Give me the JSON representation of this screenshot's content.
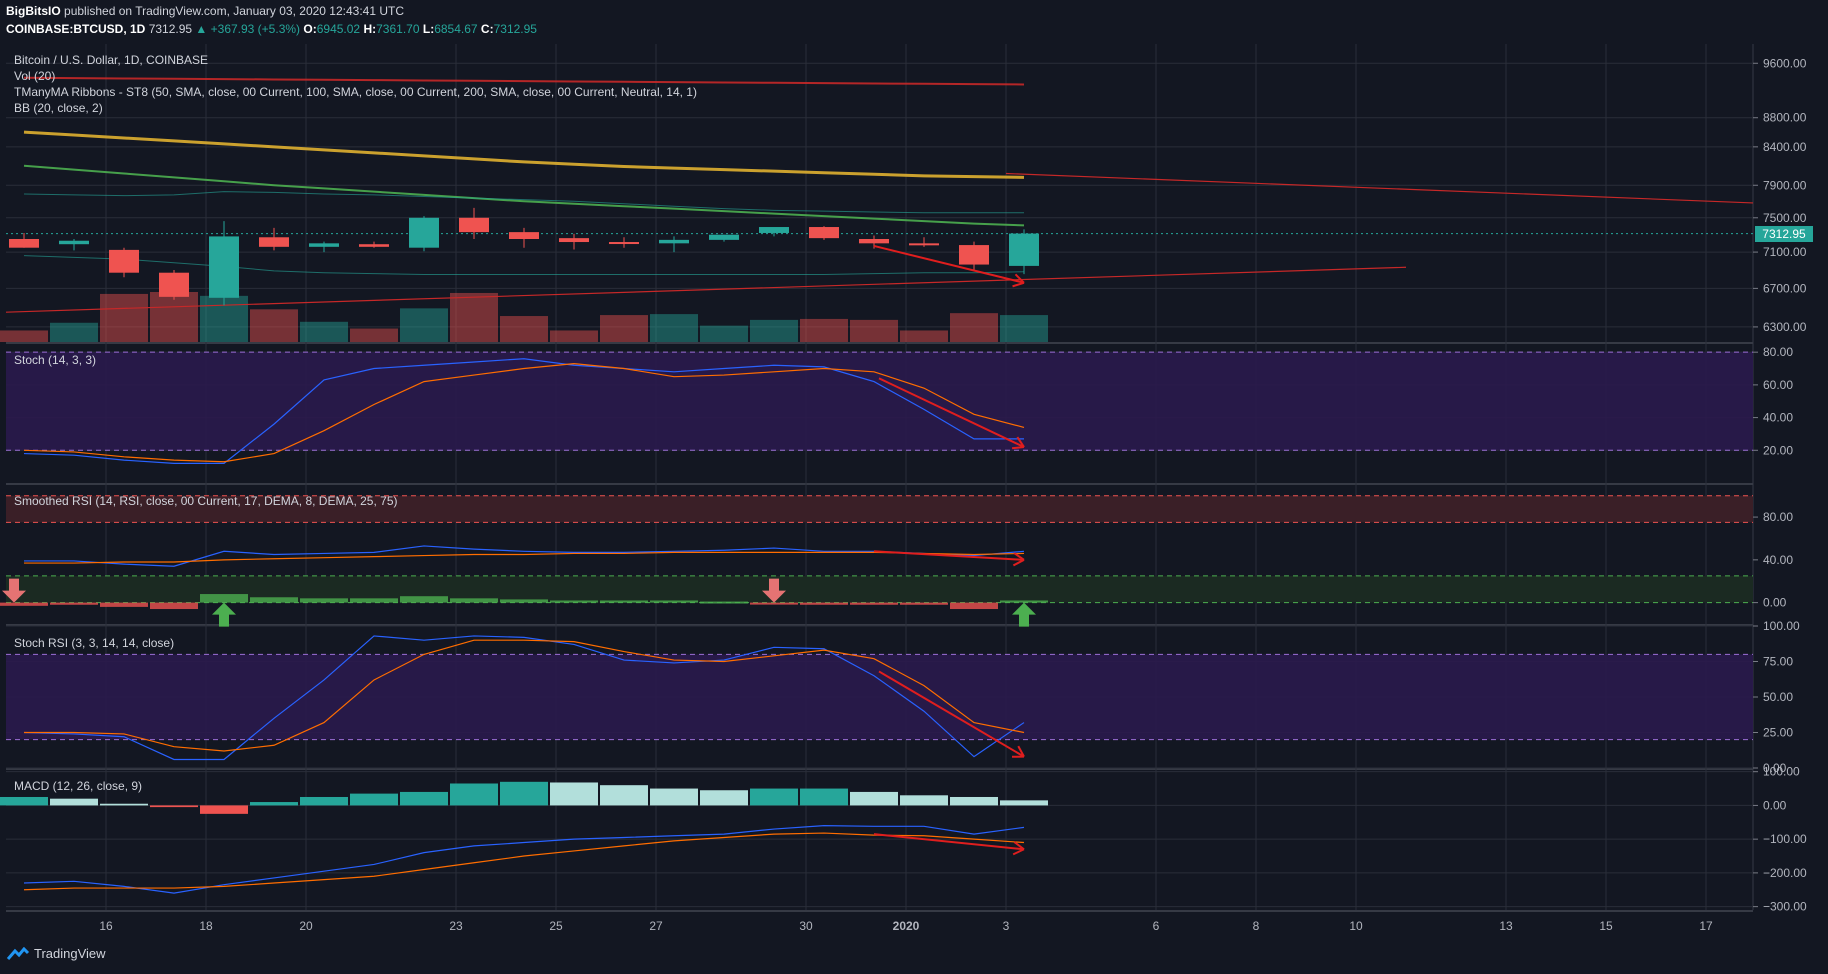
{
  "header": {
    "author": "BigBitsIO",
    "published": "published on TradingView.com, January 03, 2020 12:43:41 UTC",
    "symbol": "COINBASE:BTCUSD, 1D",
    "close": "7312.95",
    "change": "▲ +367.93 (+5.3%)",
    "o_label": "O:",
    "o": "6945.02",
    "h_label": "H:",
    "h": "7361.70",
    "l_label": "L:",
    "l": "6854.67",
    "c_label": "C:",
    "c": "7312.95"
  },
  "price_pane": {
    "legend": [
      "Bitcoin / U.S. Dollar, 1D, COINBASE",
      "Vol (20)",
      "TManyMA Ribbons - ST8 (50, SMA, close, 00 Current, 100, SMA, close, 00 Current, 200, SMA, close, 00 Current, Neutral, 14, 1)",
      "BB (20, close, 2)"
    ],
    "price_label": "7312.95"
  },
  "stoch_pane": {
    "legend": "Stoch (14, 3, 3)"
  },
  "srsi_pane": {
    "legend": "Smoothed RSI (14, RSI, close, 00 Current, 17, DEMA, 8, DEMA, 25, 75)"
  },
  "stochrsi_pane": {
    "legend": "Stoch RSI (3, 3, 14, 14, close)"
  },
  "macd_pane": {
    "legend": "MACD (12, 26, close, 9)"
  },
  "footer": {
    "brand": "TradingView"
  },
  "colors": {
    "up": "#26a69a",
    "down": "#ef5350",
    "bg": "#131722",
    "grid": "#2a2e39",
    "band": "#2a1a4d",
    "blue": "#2962ff",
    "orange": "#ff6d00",
    "arrow": "#e01e1e"
  },
  "chart_data": [
    {
      "type": "candlestick",
      "title": "Bitcoin / U.S. Dollar, 1D, COINBASE",
      "x_tick_labels": [
        "16",
        "18",
        "20",
        "23",
        "25",
        "27",
        "30",
        "2020",
        "3",
        "6",
        "8",
        "10",
        "13",
        "15",
        "17"
      ],
      "y_tick_labels": [
        "9600.00",
        "8800.00",
        "8400.00",
        "7900.00",
        "7500.00",
        "7100.00",
        "6700.00",
        "6300.00"
      ],
      "y_axis": "log",
      "ylim": [
        6150,
        9900
      ],
      "dates": [
        "Dec 14",
        "Dec 15",
        "Dec 16",
        "Dec 17",
        "Dec 18",
        "Dec 19",
        "Dec 20",
        "Dec 21",
        "Dec 22",
        "Dec 23",
        "Dec 24",
        "Dec 25",
        "Dec 26",
        "Dec 27",
        "Dec 28",
        "Dec 29",
        "Dec 30",
        "Dec 31",
        "Jan 1",
        "Jan 2",
        "Jan 3"
      ],
      "open": [
        7250,
        7190,
        7125,
        6870,
        6600,
        7270,
        7160,
        7190,
        7150,
        7500,
        7330,
        7260,
        7215,
        7200,
        7240,
        7320,
        7390,
        7250,
        7200,
        7180,
        6945
      ],
      "high": [
        7320,
        7250,
        7150,
        6900,
        7460,
        7380,
        7220,
        7220,
        7520,
        7620,
        7380,
        7310,
        7270,
        7280,
        7300,
        7380,
        7400,
        7290,
        7270,
        7220,
        7362
      ],
      "low": [
        7150,
        7120,
        6820,
        6580,
        6520,
        7120,
        7100,
        7150,
        7110,
        7250,
        7150,
        7130,
        7150,
        7100,
        7220,
        7280,
        7240,
        7140,
        7160,
        6900,
        6855
      ],
      "close": [
        7150,
        7230,
        6870,
        6610,
        7280,
        7160,
        7200,
        7160,
        7500,
        7330,
        7250,
        7215,
        7200,
        7240,
        7300,
        7390,
        7260,
        7200,
        7190,
        6960,
        7313
      ],
      "volume": [
        12,
        20,
        50,
        52,
        48,
        34,
        21,
        14,
        35,
        51,
        27,
        12,
        28,
        29,
        17,
        23,
        24,
        23,
        12,
        30,
        28
      ],
      "series": [
        {
          "name": "",
          "color": "#c62828",
          "values": [
            9380,
            9375,
            9370,
            9365,
            9360,
            9355,
            9350,
            9345,
            9340,
            9335,
            9330,
            9325,
            9320,
            9315,
            9310,
            9305,
            9300,
            9295,
            9290,
            9285,
            9280
          ]
        },
        {
          "name": "",
          "color": "#e0b030",
          "values": [
            8600,
            8560,
            8520,
            8480,
            8440,
            8400,
            8360,
            8320,
            8280,
            8240,
            8200,
            8170,
            8140,
            8120,
            8100,
            8080,
            8060,
            8040,
            8020,
            8010,
            8000
          ]
        },
        {
          "name": "",
          "color": "#4caf50",
          "values": [
            8150,
            8100,
            8050,
            8000,
            7950,
            7900,
            7860,
            7820,
            7780,
            7740,
            7700,
            7670,
            7640,
            7610,
            7580,
            7550,
            7520,
            7490,
            7460,
            7430,
            7410
          ]
        }
      ]
    },
    {
      "type": "line",
      "title": "Stoch (14, 3, 3)",
      "y_tick_labels": [
        "80.00",
        "60.00",
        "40.00",
        "20.00"
      ],
      "ylim": [
        0,
        85
      ],
      "bands": [
        20,
        80
      ],
      "series": [
        {
          "name": "",
          "color": "#2962ff",
          "values": [
            18,
            17,
            14,
            12,
            12,
            36,
            63,
            70,
            72,
            74,
            76,
            72,
            70,
            68,
            70,
            72,
            71,
            62,
            45,
            27,
            27
          ]
        },
        {
          "name": "",
          "color": "#ff6d00",
          "values": [
            20,
            19,
            16,
            14,
            13,
            18,
            32,
            48,
            62,
            66,
            70,
            73,
            70,
            65,
            66,
            68,
            70,
            68,
            58,
            42,
            34
          ]
        }
      ]
    },
    {
      "type": "line",
      "title": "Smoothed RSI (14, RSI, close, 00 Current, 17, DEMA, 8, DEMA, 25, 75)",
      "y_tick_labels": [
        "80.00",
        "40.00",
        "0.00"
      ],
      "ylim": [
        -20,
        110
      ],
      "bands": [
        0,
        25,
        75,
        100
      ],
      "series": [
        {
          "name": "",
          "color": "#2962ff",
          "values": [
            39,
            39,
            36,
            34,
            48,
            45,
            46,
            47,
            53,
            50,
            48,
            47,
            47,
            48,
            49,
            51,
            48,
            48,
            46,
            44,
            48
          ]
        },
        {
          "name": "",
          "color": "#ff6d00",
          "values": [
            37,
            37,
            38,
            38,
            40,
            41,
            42,
            43,
            44,
            45,
            45,
            46,
            46,
            47,
            47,
            47,
            47,
            47,
            46,
            45,
            46
          ]
        }
      ],
      "histogram": [
        -3,
        -2,
        -4,
        -6,
        8,
        5,
        4,
        4,
        6,
        4,
        3,
        2,
        2,
        2,
        1,
        -1,
        -2,
        -2,
        -2,
        -6,
        2
      ]
    },
    {
      "type": "line",
      "title": "Stoch RSI (3, 3, 14, 14, close)",
      "y_tick_labels": [
        "100.00",
        "75.00",
        "50.00",
        "25.00",
        "0.00"
      ],
      "ylim": [
        0,
        100
      ],
      "bands": [
        20,
        80
      ],
      "series": [
        {
          "name": "",
          "color": "#2962ff",
          "values": [
            25,
            24,
            22,
            6,
            6,
            35,
            62,
            93,
            90,
            93,
            92,
            87,
            76,
            74,
            76,
            85,
            84,
            65,
            40,
            8,
            32
          ]
        },
        {
          "name": "",
          "color": "#ff6d00",
          "values": [
            25,
            25,
            24,
            15,
            12,
            16,
            32,
            62,
            80,
            90,
            90,
            89,
            82,
            76,
            75,
            79,
            83,
            77,
            58,
            32,
            25
          ]
        }
      ]
    },
    {
      "type": "bar",
      "title": "MACD (12, 26, close, 9)",
      "y_tick_labels": [
        "100.00",
        "0.00",
        "−100.00",
        "−200.00",
        "−300.00"
      ],
      "ylim": [
        -310,
        105
      ],
      "histogram": [
        25,
        20,
        5,
        -5,
        -25,
        10,
        25,
        35,
        40,
        65,
        70,
        68,
        60,
        50,
        45,
        50,
        50,
        40,
        30,
        25,
        15
      ],
      "series": [
        {
          "name": "",
          "color": "#2962ff",
          "values": [
            -230,
            -225,
            -240,
            -260,
            -235,
            -215,
            -195,
            -175,
            -140,
            -120,
            -110,
            -100,
            -95,
            -90,
            -85,
            -70,
            -60,
            -62,
            -62,
            -85,
            -65
          ]
        },
        {
          "name": "",
          "color": "#ff6d00",
          "values": [
            -250,
            -245,
            -245,
            -245,
            -240,
            -230,
            -220,
            -210,
            -190,
            -170,
            -150,
            -135,
            -120,
            -105,
            -95,
            -85,
            -82,
            -88,
            -90,
            -100,
            -110
          ]
        }
      ]
    }
  ]
}
